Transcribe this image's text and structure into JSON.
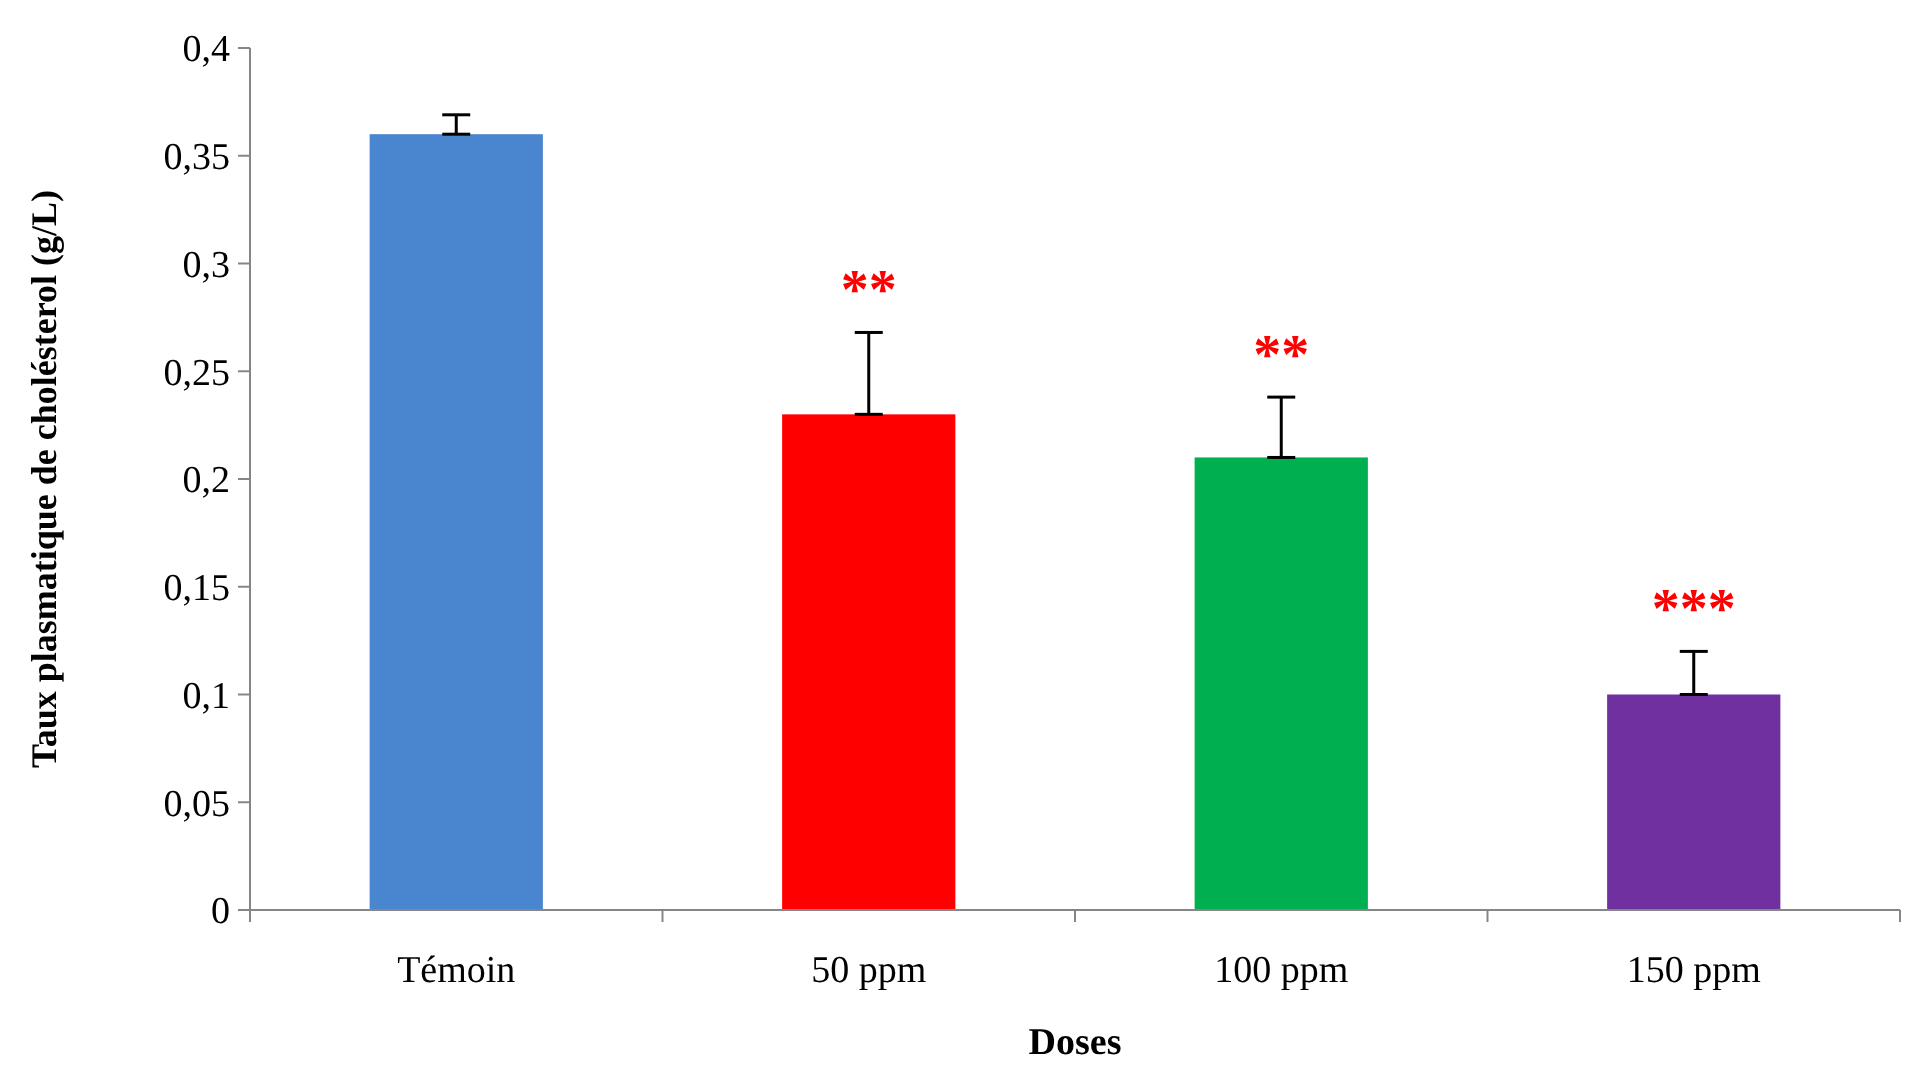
{
  "chart_data": {
    "type": "bar",
    "xlabel": "Doses",
    "ylabel": "Taux plasmatique de cholésterol (g/L)",
    "categories": [
      "Témoin",
      "50 ppm",
      "100 ppm",
      "150 ppm"
    ],
    "values": [
      0.36,
      0.23,
      0.21,
      0.1
    ],
    "colors": [
      "#4a86d0",
      "#ff0000",
      "#00b050",
      "#7030a0"
    ],
    "errors": [
      [
        0.36,
        0.369
      ],
      [
        0.23,
        0.268
      ],
      [
        0.21,
        0.238
      ],
      [
        0.1,
        0.12
      ]
    ],
    "ylim": [
      0,
      0.4
    ],
    "yticks": [
      0,
      {
        "value": 0.05,
        "label": "0,05"
      },
      {
        "value": 0.1,
        "label": "0,1"
      },
      {
        "value": 0.15,
        "label": "0,15"
      },
      {
        "value": 0.2,
        "label": "0,2"
      },
      {
        "value": 0.25,
        "label": "0,25"
      },
      {
        "value": 0.3,
        "label": "0,3"
      },
      {
        "value": 0.35,
        "label": "0,35"
      },
      {
        "value": 0.4,
        "label": "0,4"
      }
    ],
    "annotations": [
      {
        "text": "**",
        "x": "50 ppm",
        "y": 0.268
      },
      {
        "text": "**",
        "x": "100 ppm",
        "y": 0.238
      },
      {
        "text": "***",
        "x": "150 ppm",
        "y": 0.12
      }
    ],
    "grid": false
  }
}
